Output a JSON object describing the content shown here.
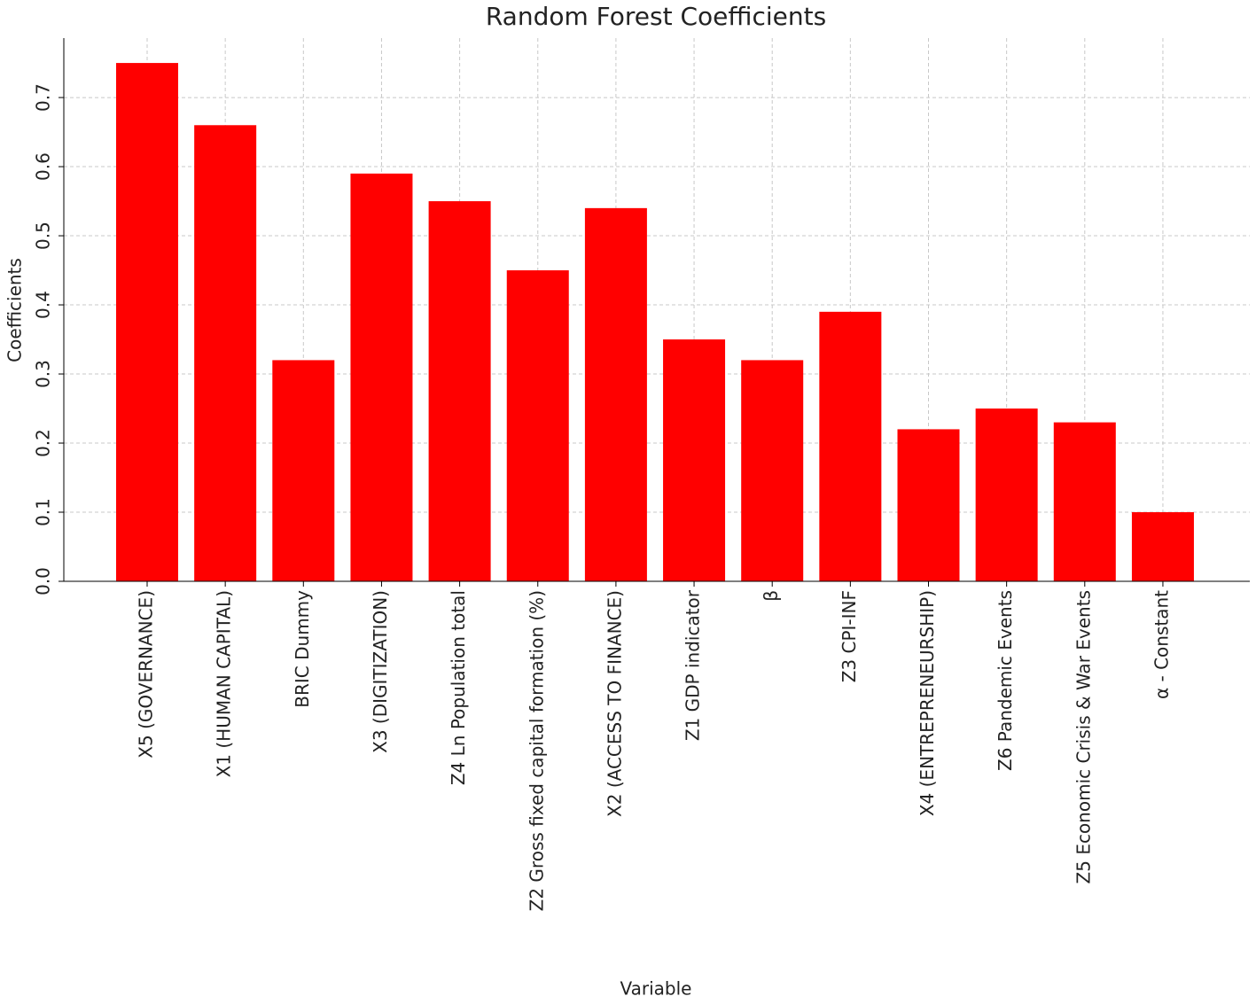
{
  "chart_data": {
    "type": "bar",
    "title": "Random Forest Coefficients",
    "x_label": "Variable",
    "y_label": "Coefficients",
    "categories": [
      "X5 (GOVERNANCE)",
      "X1 (HUMAN CAPITAL)",
      "BRIC Dummy",
      "X3 (DIGITIZATION)",
      "Z4 Ln Population total",
      "Z2 Gross fixed capital formation (%)",
      "X2 (ACCESS TO FINANCE)",
      "Z1 GDP indicator",
      "β",
      "Z3 CPI-INF",
      "X4 (ENTREPRENEURSHIP)",
      "Z6 Pandemic Events",
      "Z5 Economic Crisis & War Events",
      "α - Constant"
    ],
    "values": [
      0.75,
      0.66,
      0.32,
      0.59,
      0.55,
      0.45,
      0.54,
      0.35,
      0.32,
      0.39,
      0.22,
      0.25,
      0.23,
      0.1
    ],
    "color": "#ff0000",
    "ylim": [
      0,
      0.786
    ],
    "yticks": [
      {
        "value": 0,
        "label": "0.0"
      },
      0.1,
      0.2,
      0.3,
      0.4,
      0.5,
      0.6,
      0.7
    ],
    "grid": true
  }
}
